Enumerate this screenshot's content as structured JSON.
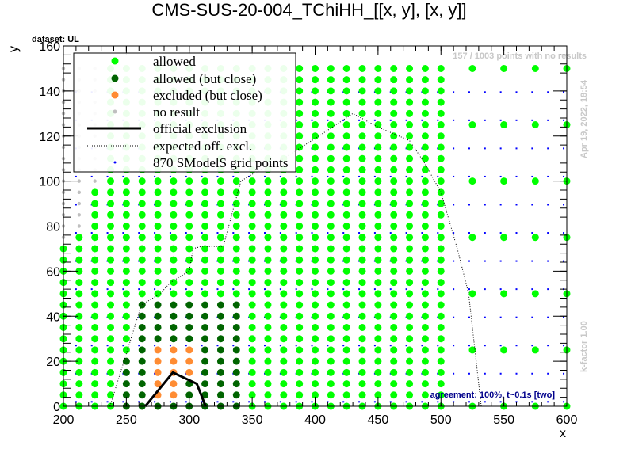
{
  "chart_data": {
    "type": "scatter",
    "title": "CMS-SUS-20-004_TChiHH_[[x, y], [x, y]]",
    "xlabel": "x",
    "ylabel": "y",
    "xlim": [
      200,
      600
    ],
    "ylim": [
      0,
      160
    ],
    "x_ticks": [
      200,
      250,
      300,
      350,
      400,
      450,
      500,
      550,
      600
    ],
    "y_ticks": [
      0,
      20,
      40,
      60,
      80,
      100,
      120,
      140,
      160
    ],
    "legend": [
      "allowed",
      "allowed (but close)",
      "excluded (but close)",
      "no result",
      "official exclusion",
      "expected off. excl.",
      "870 SModelS grid points"
    ],
    "legend_position": "top-left",
    "colors": {
      "allowed": "#00ff00",
      "allowed_close": "#006400",
      "excluded_close": "#ff8c33",
      "no_result": "#bfbfbf",
      "grid": "#0000ff",
      "official": "#000000"
    },
    "official_exclusion": [
      [
        265,
        0
      ],
      [
        287,
        15
      ],
      [
        306,
        10
      ],
      [
        313,
        0
      ]
    ],
    "expected_exclusion": [
      [
        237,
        0
      ],
      [
        262,
        45
      ],
      [
        277,
        50
      ],
      [
        285,
        55
      ],
      [
        300,
        60
      ],
      [
        303,
        70
      ],
      [
        310,
        71
      ],
      [
        327,
        71
      ],
      [
        341,
        100
      ],
      [
        350,
        103
      ],
      [
        375,
        110
      ],
      [
        403,
        120
      ],
      [
        430,
        130
      ],
      [
        450,
        124
      ],
      [
        475,
        118
      ],
      [
        487,
        108
      ],
      [
        500,
        95
      ],
      [
        513,
        70
      ],
      [
        522,
        50
      ],
      [
        532,
        0
      ]
    ]
  },
  "annotations": {
    "dataset": "dataset: UL",
    "no_results": "157 / 1003 points with no results",
    "date": "Apr 19, 2022, 18:54",
    "kfactor": "k-factor 1.00",
    "agreement": "agreement: 100%, t~0.1s [two]"
  }
}
